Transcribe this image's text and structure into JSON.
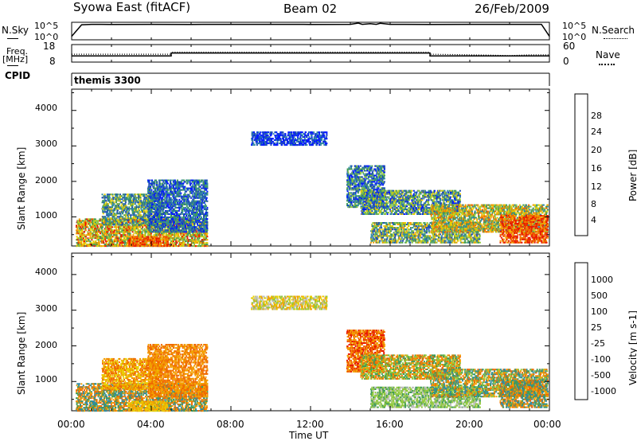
{
  "header": {
    "station": "Syowa East (fitACF)",
    "beam": "Beam 02",
    "date": "26/Feb/2009"
  },
  "noise_panel": {
    "left_label": "N.Sky",
    "left_ticks": [
      "10^5",
      "10^0"
    ],
    "right_label": "N.Search",
    "right_ticks": [
      "10^5",
      "10^0"
    ]
  },
  "freq_panel": {
    "left_label_1": "Freq.",
    "left_label_2": "[MHz]",
    "left_ticks": [
      "18",
      "8"
    ],
    "right_label": "Nave",
    "right_ticks": [
      "60",
      "0"
    ],
    "cpid_label": "CPID",
    "cpid_value": "themis 3300"
  },
  "colors": {
    "power_scale": [
      "#0018ff",
      "#1f4eb4",
      "#2f8aa0",
      "#3f9a58",
      "#8fc83a",
      "#e8d000",
      "#f3a000",
      "#f06a00",
      "#e81a00"
    ],
    "velocity_scale": [
      "#e81a00",
      "#f06a00",
      "#f3a000",
      "#e8d000",
      "#bfbfbf",
      "#8fc83a",
      "#3f9a58",
      "#2f8aa0",
      "#1f4eb4"
    ]
  },
  "chart_data": [
    {
      "type": "line",
      "name": "noise",
      "x_range": [
        0,
        24
      ],
      "y_scale": "log",
      "ylim": [
        1,
        100000
      ],
      "series": [
        {
          "name": "N.Sky",
          "style": "solid",
          "x": [
            0,
            0.5,
            1,
            2,
            4,
            6,
            8,
            10,
            12,
            14,
            14.4,
            14.6,
            15,
            15.3,
            15.5,
            16,
            18,
            20,
            22,
            23.6,
            24
          ],
          "y": [
            10,
            20000,
            25000,
            24000,
            25000,
            24000,
            26000,
            25000,
            24000,
            26000,
            60000,
            26000,
            40000,
            25000,
            50000,
            25000,
            24000,
            25000,
            26000,
            25000,
            10
          ]
        }
      ]
    },
    {
      "type": "line",
      "name": "frequency",
      "x_range": [
        0,
        24
      ],
      "series": [
        {
          "name": "Freq.",
          "axis": "left",
          "ylim": [
            8,
            18
          ],
          "style": "solid",
          "x": [
            0,
            5,
            5,
            18,
            18,
            24
          ],
          "y": [
            11.5,
            11.5,
            13.2,
            13.2,
            11.5,
            11.5
          ]
        },
        {
          "name": "Nave",
          "axis": "right",
          "ylim": [
            0,
            60
          ],
          "style": "dotted",
          "x": [
            0,
            5,
            5,
            18,
            18,
            21,
            22,
            23,
            24
          ],
          "y": [
            27,
            27,
            34,
            34,
            27,
            24,
            22,
            25,
            25
          ]
        }
      ]
    },
    {
      "type": "heatmap",
      "name": "power",
      "ylabel": "Slant Range [km]",
      "y_ticks": [
        "1000",
        "2000",
        "3000",
        "4000"
      ],
      "ylim": [
        180,
        4600
      ],
      "colorbar_label": "Power [dB]",
      "colorbar_ticks": [
        "4",
        "8",
        "12",
        "16",
        "20",
        "24",
        "28"
      ],
      "regions": [
        {
          "t": [
            0.2,
            6.8
          ],
          "r": [
            200,
            1000
          ],
          "v": [
            3,
            4,
            5,
            6,
            8
          ]
        },
        {
          "t": [
            1.5,
            4.5
          ],
          "r": [
            800,
            1700
          ],
          "v": [
            1,
            2,
            3,
            5
          ]
        },
        {
          "t": [
            3.8,
            6.8
          ],
          "r": [
            600,
            2100
          ],
          "v": [
            0,
            1,
            2,
            3
          ]
        },
        {
          "t": [
            2.8,
            4.8
          ],
          "r": [
            200,
            500
          ],
          "v": [
            7,
            8,
            6
          ]
        },
        {
          "t": [
            9.0,
            12.8
          ],
          "r": [
            3050,
            3450
          ],
          "v": [
            0,
            1,
            0,
            2
          ]
        },
        {
          "t": [
            13.8,
            15.7
          ],
          "r": [
            1300,
            2500
          ],
          "v": [
            0,
            1,
            2,
            3,
            4
          ]
        },
        {
          "t": [
            14.5,
            19.5
          ],
          "r": [
            1100,
            1800
          ],
          "v": [
            0,
            1,
            2,
            3,
            4,
            5
          ]
        },
        {
          "t": [
            15.0,
            20.5
          ],
          "r": [
            300,
            900
          ],
          "v": [
            1,
            2,
            3,
            4,
            5,
            6
          ]
        },
        {
          "t": [
            18.0,
            23.9
          ],
          "r": [
            600,
            1400
          ],
          "v": [
            2,
            3,
            4,
            5,
            6,
            7
          ]
        },
        {
          "t": [
            21.5,
            23.9
          ],
          "r": [
            300,
            1100
          ],
          "v": [
            6,
            7,
            8,
            8
          ]
        }
      ]
    },
    {
      "type": "heatmap",
      "name": "velocity",
      "ylabel": "Slant Range [km]",
      "y_ticks": [
        "1000",
        "2000",
        "3000",
        "4000"
      ],
      "ylim": [
        180,
        4600
      ],
      "xlabel": "Time UT",
      "x_ticks": [
        "00:00",
        "04:00",
        "08:00",
        "12:00",
        "16:00",
        "20:00",
        "00:00"
      ],
      "colorbar_label": "Velocity [m s-1]",
      "colorbar_ticks": [
        "1000",
        "500",
        "100",
        "25",
        "-25",
        "-100",
        "-500",
        "-1000"
      ],
      "regions": [
        {
          "t": [
            0.2,
            6.8
          ],
          "r": [
            200,
            1000
          ],
          "v": [
            1,
            2,
            6,
            7
          ]
        },
        {
          "t": [
            1.5,
            4.5
          ],
          "r": [
            800,
            1700
          ],
          "v": [
            1,
            2,
            3
          ]
        },
        {
          "t": [
            3.8,
            6.8
          ],
          "r": [
            600,
            2100
          ],
          "v": [
            1,
            2
          ]
        },
        {
          "t": [
            2.8,
            4.8
          ],
          "r": [
            200,
            500
          ],
          "v": [
            2,
            3
          ]
        },
        {
          "t": [
            9.0,
            12.8
          ],
          "r": [
            3050,
            3450
          ],
          "v": [
            2,
            3,
            4,
            5
          ]
        },
        {
          "t": [
            13.8,
            15.7
          ],
          "r": [
            1300,
            2500
          ],
          "v": [
            0,
            1,
            2
          ]
        },
        {
          "t": [
            14.5,
            19.5
          ],
          "r": [
            1100,
            1800
          ],
          "v": [
            1,
            2,
            5,
            6
          ]
        },
        {
          "t": [
            15.0,
            20.5
          ],
          "r": [
            300,
            900
          ],
          "v": [
            5,
            6,
            5,
            4
          ]
        },
        {
          "t": [
            18.0,
            23.9
          ],
          "r": [
            600,
            1400
          ],
          "v": [
            1,
            2,
            5,
            6,
            7
          ]
        },
        {
          "t": [
            21.5,
            23.9
          ],
          "r": [
            300,
            1100
          ],
          "v": [
            1,
            2,
            6,
            7
          ]
        }
      ]
    }
  ]
}
